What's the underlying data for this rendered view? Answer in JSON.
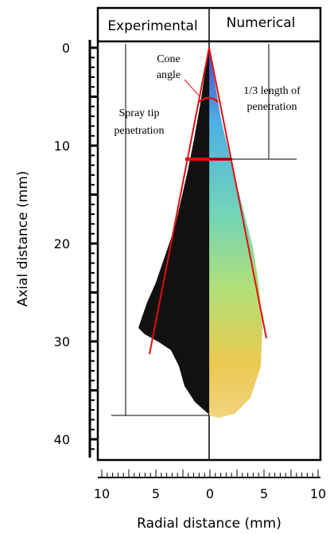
{
  "headers": {
    "left": "Experimental",
    "right": "Numerical"
  },
  "annotations": {
    "cone_angle": [
      "Cone",
      "angle"
    ],
    "one_third": [
      "1/3 length of",
      "penetration"
    ],
    "spray_tip": [
      "Spray tip",
      "penetration"
    ]
  },
  "y_axis": {
    "label": "Axial distance (mm)",
    "ticks": [
      "0",
      "10",
      "20",
      "30",
      "40"
    ]
  },
  "x_axis": {
    "label": "Radial distance (mm)",
    "ticks": [
      "10",
      "5",
      "0",
      "5",
      "10"
    ]
  }
}
